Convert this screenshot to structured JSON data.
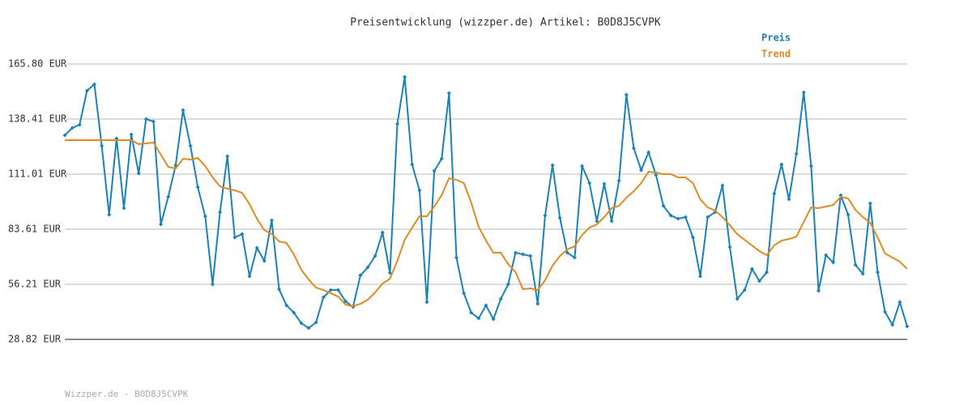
{
  "chart_data": {
    "type": "line",
    "title": "Preisentwicklung (wizzper.de) Artikel: B0D8J5CVPK",
    "footer": "Wizzper.de - B0D8J5CVPK",
    "ylim": [
      28.82,
      165.8
    ],
    "yticks": [
      {
        "value": 28.82,
        "label": "28.82 EUR"
      },
      {
        "value": 56.21,
        "label": "56.21 EUR"
      },
      {
        "value": 83.61,
        "label": "83.61 EUR"
      },
      {
        "value": 111.01,
        "label": "111.01 EUR"
      },
      {
        "value": 138.41,
        "label": "138.41 EUR"
      },
      {
        "value": 165.8,
        "label": "165.80 EUR"
      }
    ],
    "grid": true,
    "legend": "top-right",
    "series": [
      {
        "name": "Preis",
        "color": "#1a82b8",
        "markers": true,
        "values": [
          130.34,
          133.97,
          135.58,
          152.5,
          155.73,
          125.1,
          90.85,
          128.73,
          94.08,
          130.74,
          111.4,
          138.4,
          137.19,
          86.02,
          99.72,
          115.43,
          142.83,
          125.1,
          104.55,
          90.05,
          56.2,
          92.06,
          119.86,
          79.57,
          81.18,
          60.23,
          74.33,
          67.89,
          88.03,
          53.78,
          45.72,
          42.1,
          36.86,
          34.44,
          37.26,
          49.75,
          53.38,
          53.38,
          47.74,
          44.92,
          60.63,
          64.66,
          70.3,
          81.99,
          61.84,
          135.98,
          159.35,
          115.84,
          102.94,
          47.34,
          112.61,
          118.66,
          151.29,
          69.5,
          51.77,
          42.1,
          39.28,
          45.72,
          38.87,
          48.95,
          56.2,
          71.91,
          71.11,
          70.3,
          46.53,
          90.45,
          115.43,
          89.24,
          71.91,
          69.5,
          115.03,
          106.57,
          87.63,
          106.16,
          87.63,
          107.78,
          150.49,
          123.89,
          113.01,
          121.88,
          110.6,
          95.29,
          90.45,
          88.84,
          89.64,
          79.57,
          60.23,
          89.64,
          92.06,
          105.36,
          74.74,
          48.95,
          53.38,
          63.86,
          57.81,
          62.24,
          101.33,
          115.84,
          98.51,
          121.07,
          151.7,
          115.03,
          52.97,
          70.71,
          67.08,
          100.52,
          90.85,
          65.87,
          61.44,
          96.49,
          62.24,
          42.5,
          36.05,
          47.34,
          35.25
        ]
      },
      {
        "name": "Trend",
        "color": "#e08a23",
        "markers": false,
        "values": [
          127.92,
          127.92,
          127.92,
          127.92,
          127.92,
          127.92,
          127.92,
          127.92,
          127.92,
          127.92,
          125.91,
          126.31,
          126.72,
          120.67,
          114.63,
          113.82,
          118.66,
          118.25,
          119.06,
          115.03,
          109.39,
          104.96,
          103.75,
          102.94,
          101.73,
          96.09,
          88.84,
          83.2,
          81.18,
          77.56,
          76.75,
          71.11,
          63.45,
          58.62,
          54.59,
          53.38,
          51.77,
          50.16,
          46.13,
          45.32,
          46.53,
          48.55,
          52.17,
          56.61,
          59.02,
          67.89,
          78.36,
          84.41,
          90.05,
          90.05,
          94.88,
          100.52,
          108.98,
          108.18,
          106.57,
          96.9,
          84.81,
          77.96,
          71.91,
          71.91,
          66.27,
          62.24,
          53.78,
          54.19,
          53.38,
          58.22,
          65.47,
          70.3,
          73.53,
          75.14,
          80.78,
          84.41,
          86.02,
          89.64,
          94.08,
          95.29,
          99.31,
          102.54,
          106.57,
          112.21,
          111.81,
          111.0,
          111.0,
          109.39,
          109.39,
          106.57,
          98.51,
          94.48,
          92.87,
          89.64,
          85.62,
          81.18,
          78.36,
          75.54,
          72.72,
          70.71,
          75.54,
          77.96,
          78.77,
          79.97,
          87.23,
          94.48,
          94.08,
          94.88,
          95.69,
          99.72,
          98.91,
          93.27,
          89.64,
          86.82,
          79.57,
          71.51,
          69.5,
          67.48,
          63.86
        ]
      }
    ]
  }
}
